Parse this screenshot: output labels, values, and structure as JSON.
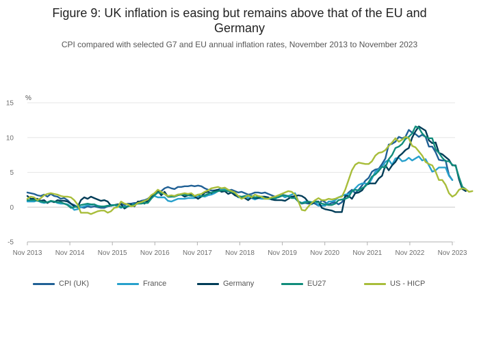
{
  "title_line1": "Figure 9: UK inflation is easing but remains above that of the EU and",
  "title_line2": "Germany",
  "subtitle": "CPI compared with selected G7 and EU annual inflation rates, November 2013 to November 2023",
  "chart_data": {
    "type": "line",
    "y_unit": "%",
    "ylim": [
      -5,
      15
    ],
    "yticks": [
      -5,
      0,
      5,
      10,
      15
    ],
    "x_tick_labels": [
      "Nov 2013",
      "Nov 2014",
      "Nov 2015",
      "Nov 2016",
      "Nov 2017",
      "Nov 2018",
      "Nov 2019",
      "Nov 2020",
      "Nov 2021",
      "Nov 2022",
      "Nov 2023"
    ],
    "x_start": "Nov 2013",
    "x_end": "Nov 2023",
    "grid": true,
    "legend_position": "bottom",
    "series": [
      {
        "name": "CPI (UK)",
        "color": "#206095",
        "values": [
          2.1,
          2.0,
          1.9,
          1.7,
          1.6,
          1.8,
          1.5,
          1.9,
          1.6,
          1.5,
          1.2,
          1.3,
          1.0,
          0.5,
          0.3,
          0.0,
          0.0,
          -0.1,
          0.1,
          0.0,
          0.1,
          0.0,
          -0.1,
          -0.1,
          0.1,
          0.2,
          0.3,
          0.3,
          0.5,
          0.3,
          0.5,
          0.5,
          0.6,
          0.6,
          0.9,
          1.0,
          1.2,
          1.6,
          1.8,
          2.3,
          2.3,
          2.7,
          2.9,
          2.7,
          2.6,
          2.9,
          2.9,
          3.0,
          3.0,
          3.1,
          3.0,
          3.1,
          3.0,
          2.7,
          2.5,
          2.4,
          2.4,
          2.5,
          2.7,
          2.4,
          2.4,
          2.5,
          2.3,
          2.1,
          2.2,
          2.0,
          1.8,
          1.9,
          2.1,
          2.1,
          2.0,
          2.1,
          1.9,
          1.7,
          1.5,
          1.5,
          1.8,
          1.7,
          1.5,
          1.5,
          1.3,
          0.8,
          0.5,
          0.6,
          0.5,
          0.6,
          0.5,
          0.2,
          1.0,
          0.7,
          0.4,
          0.6,
          0.7,
          0.4,
          0.7,
          1.5,
          2.1,
          2.5,
          2.0,
          2.5,
          3.1,
          3.8,
          4.2,
          5.1,
          5.4,
          5.5,
          6.2,
          7.0,
          9.0,
          9.1,
          9.4,
          10.1,
          9.9,
          10.1,
          11.1,
          10.7,
          10.5,
          10.1,
          10.4,
          10.1,
          8.7,
          8.7,
          7.9,
          6.8,
          6.7,
          6.7,
          4.6,
          3.9
        ]
      },
      {
        "name": "France",
        "color": "#27a0cc",
        "values": [
          0.8,
          0.8,
          0.8,
          1.0,
          0.7,
          0.6,
          0.7,
          0.8,
          0.8,
          0.6,
          0.5,
          0.5,
          0.4,
          0.1,
          -0.4,
          -0.3,
          0.0,
          0.1,
          0.3,
          0.3,
          0.4,
          0.2,
          0.1,
          0.1,
          0.2,
          0.3,
          0.3,
          0.1,
          -0.1,
          0.1,
          0.1,
          0.4,
          0.4,
          0.5,
          0.6,
          0.8,
          1.0,
          1.6,
          1.6,
          1.4,
          1.4,
          1.4,
          0.9,
          0.8,
          1.0,
          1.2,
          1.2,
          1.2,
          1.3,
          1.3,
          1.3,
          1.5,
          1.6,
          1.5,
          1.7,
          1.8,
          2.0,
          2.3,
          2.6,
          2.6,
          2.5,
          2.2,
          1.9,
          1.4,
          1.4,
          1.6,
          1.3,
          1.3,
          1.1,
          1.3,
          1.2,
          1.2,
          1.2,
          1.1,
          1.1,
          1.6,
          1.7,
          1.4,
          1.6,
          1.8,
          2.0,
          0.8,
          0.6,
          0.8,
          0.8,
          0.4,
          0.9,
          0.2,
          0.2,
          0.2,
          0.8,
          0.8,
          1.0,
          1.4,
          1.6,
          1.8,
          1.9,
          2.2,
          2.7,
          3.2,
          3.4,
          3.4,
          3.3,
          4.1,
          5.1,
          5.4,
          5.8,
          6.5,
          6.8,
          6.1,
          7.0,
          7.1,
          6.6,
          6.7,
          7.1,
          6.7,
          7.0,
          7.3,
          6.7,
          6.9,
          6.0,
          5.1,
          5.3,
          5.7,
          5.7,
          5.7,
          4.5,
          3.9
        ]
      },
      {
        "name": "Germany",
        "color": "#003c57",
        "values": [
          1.6,
          1.2,
          1.2,
          1.2,
          0.9,
          1.0,
          0.6,
          0.9,
          0.7,
          1.0,
          0.9,
          0.9,
          0.8,
          0.5,
          0.1,
          0.0,
          1.0,
          1.4,
          1.2,
          1.5,
          1.3,
          1.1,
          0.9,
          1.0,
          0.8,
          0.2,
          0.3,
          0.4,
          0.4,
          -0.2,
          0.1,
          0.4,
          0.1,
          0.8,
          0.8,
          0.5,
          0.9,
          1.4,
          1.9,
          2.4,
          1.7,
          2.2,
          1.5,
          1.5,
          1.6,
          1.8,
          1.8,
          1.5,
          1.7,
          1.8,
          1.5,
          1.2,
          1.5,
          2.1,
          2.2,
          2.0,
          2.4,
          2.5,
          2.2,
          2.3,
          1.9,
          2.1,
          1.7,
          1.5,
          1.4,
          1.3,
          1.0,
          1.4,
          1.3,
          1.3,
          1.5,
          1.5,
          1.4,
          1.1,
          1.0,
          1.0,
          1.0,
          0.9,
          1.2,
          1.5,
          1.6,
          1.7,
          1.6,
          1.3,
          0.7,
          0.5,
          0.8,
          0.8,
          -0.1,
          -0.3,
          -0.4,
          -0.5,
          -0.7,
          -0.7,
          -0.7,
          1.6,
          1.6,
          1.2,
          2.0,
          2.1,
          2.4,
          3.1,
          3.4,
          3.4,
          3.4,
          4.1,
          4.5,
          6.0,
          5.3,
          6.0,
          6.5,
          7.3,
          7.7,
          8.2,
          8.5,
          10.0,
          10.9,
          11.6,
          11.3,
          11.0,
          9.6,
          9.2,
          9.3,
          7.8,
          7.6,
          7.2,
          6.8,
          6.0,
          6.0,
          4.0,
          2.6,
          2.3
        ]
      },
      {
        "name": "EU27",
        "color": "#118c7b",
        "values": [
          1.0,
          1.0,
          1.0,
          0.9,
          0.8,
          0.7,
          0.7,
          0.9,
          0.8,
          0.7,
          0.7,
          0.5,
          0.3,
          -0.1,
          0.0,
          0.1,
          0.3,
          0.4,
          0.5,
          0.4,
          0.4,
          0.1,
          0.1,
          0.1,
          0.2,
          0.2,
          0.3,
          0.3,
          0.0,
          0.0,
          0.1,
          0.2,
          0.4,
          0.5,
          0.5,
          0.6,
          0.6,
          1.2,
          1.7,
          2.1,
          2.0,
          1.9,
          1.5,
          1.5,
          1.5,
          1.7,
          1.8,
          1.8,
          1.7,
          1.6,
          1.6,
          1.8,
          1.5,
          1.7,
          1.9,
          2.1,
          2.2,
          2.3,
          2.4,
          2.4,
          2.3,
          2.2,
          2.0,
          1.6,
          1.5,
          1.6,
          1.6,
          1.6,
          1.4,
          1.5,
          1.5,
          1.3,
          1.2,
          1.3,
          1.3,
          1.4,
          1.6,
          1.7,
          1.6,
          1.3,
          1.3,
          0.8,
          0.6,
          0.6,
          0.8,
          0.7,
          0.8,
          0.7,
          0.5,
          0.4,
          0.3,
          0.3,
          0.5,
          1.0,
          1.1,
          1.2,
          1.4,
          2.3,
          2.5,
          2.4,
          2.7,
          3.0,
          3.6,
          4.4,
          4.7,
          5.2,
          5.8,
          5.7,
          6.9,
          7.5,
          8.5,
          8.7,
          9.1,
          9.8,
          10.1,
          10.6,
          11.6,
          11.4,
          10.6,
          10.1,
          9.9,
          9.9,
          8.3,
          7.8,
          7.1,
          6.6,
          6.6,
          6.1,
          5.9,
          4.3,
          2.9,
          2.6
        ]
      },
      {
        "name": "US - HICP",
        "color": "#a8bd3a",
        "values": [
          1.2,
          1.5,
          1.4,
          1.0,
          1.3,
          1.7,
          1.9,
          2.0,
          1.9,
          1.8,
          1.6,
          1.5,
          1.5,
          1.4,
          1.0,
          0.4,
          -0.8,
          -0.8,
          -0.8,
          -1.0,
          -0.8,
          -0.6,
          -0.5,
          -0.5,
          -0.8,
          -0.6,
          -0.1,
          0.0,
          0.8,
          0.5,
          0.4,
          0.1,
          0.2,
          0.6,
          0.7,
          0.9,
          1.1,
          1.7,
          2.0,
          2.5,
          2.2,
          1.9,
          1.6,
          1.7,
          1.6,
          1.8,
          1.9,
          2.0,
          1.9,
          2.0,
          1.6,
          1.8,
          1.9,
          2.2,
          2.4,
          2.7,
          2.8,
          2.9,
          2.7,
          2.8,
          2.5,
          2.3,
          2.1,
          1.6,
          1.2,
          1.4,
          1.7,
          1.4,
          1.8,
          1.6,
          1.5,
          1.2,
          1.2,
          1.4,
          1.5,
          1.7,
          1.9,
          2.1,
          2.3,
          2.2,
          1.8,
          0.8,
          -0.4,
          -0.5,
          0.1,
          0.6,
          1.0,
          1.3,
          1.0,
          1.0,
          1.2,
          1.1,
          1.2,
          1.4,
          1.5,
          2.5,
          3.9,
          5.3,
          6.1,
          6.4,
          6.3,
          6.2,
          6.2,
          6.6,
          7.4,
          7.8,
          7.9,
          8.2,
          8.8,
          9.3,
          9.9,
          9.4,
          9.7,
          10.1,
          9.9,
          8.8,
          8.6,
          8.0,
          7.4,
          6.5,
          6.2,
          6.0,
          5.1,
          3.9,
          3.9,
          3.2,
          2.0,
          1.5,
          1.8,
          2.5,
          2.7,
          2.6,
          2.2,
          2.3
        ]
      }
    ]
  }
}
